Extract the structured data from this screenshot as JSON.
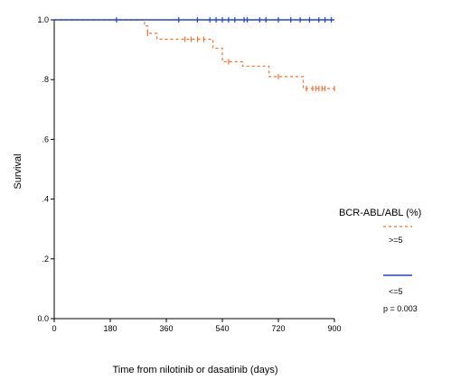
{
  "chart_data": {
    "type": "line",
    "title": "",
    "xlabel": "Time from nilotinib or dasatinib (days)",
    "ylabel": "Survival",
    "xlim": [
      0,
      900
    ],
    "ylim": [
      0,
      1.0
    ],
    "x_ticks": [
      0,
      180,
      360,
      540,
      720,
      900
    ],
    "x_tick_labels": [
      "0",
      "180",
      "360",
      "540",
      "720",
      "900"
    ],
    "y_ticks": [
      0,
      0.2,
      0.4,
      0.6,
      0.8,
      1.0
    ],
    "y_tick_labels": [
      "0.0",
      ".2",
      ".4",
      ".6",
      ".8",
      "1.0"
    ],
    "legend": {
      "title": "BCR-ABL/ABL (%)",
      "placement": "right"
    },
    "annotation": "p = 0.003",
    "series": [
      {
        "name": ">=5",
        "color": "#f07030",
        "style": "dashed",
        "steps": [
          [
            0,
            1.0
          ],
          [
            290,
            0.98
          ],
          [
            300,
            0.955
          ],
          [
            330,
            0.935
          ],
          [
            510,
            0.905
          ],
          [
            540,
            0.86
          ],
          [
            605,
            0.845
          ],
          [
            690,
            0.81
          ],
          [
            800,
            0.77
          ],
          [
            900,
            0.77
          ]
        ],
        "censored": [
          [
            300,
            0.955
          ],
          [
            420,
            0.935
          ],
          [
            440,
            0.935
          ],
          [
            460,
            0.935
          ],
          [
            480,
            0.935
          ],
          [
            560,
            0.86
          ],
          [
            720,
            0.81
          ],
          [
            810,
            0.77
          ],
          [
            830,
            0.77
          ],
          [
            840,
            0.77
          ],
          [
            850,
            0.77
          ],
          [
            860,
            0.77
          ],
          [
            870,
            0.77
          ],
          [
            900,
            0.77
          ]
        ]
      },
      {
        "name": "<=5",
        "color": "#2040e0",
        "style": "solid",
        "steps": [
          [
            0,
            1.0
          ],
          [
            900,
            1.0
          ]
        ],
        "censored": [
          [
            200,
            1.0
          ],
          [
            400,
            1.0
          ],
          [
            460,
            1.0
          ],
          [
            500,
            1.0
          ],
          [
            520,
            1.0
          ],
          [
            540,
            1.0
          ],
          [
            560,
            1.0
          ],
          [
            580,
            1.0
          ],
          [
            610,
            1.0
          ],
          [
            620,
            1.0
          ],
          [
            660,
            1.0
          ],
          [
            680,
            1.0
          ],
          [
            720,
            1.0
          ],
          [
            760,
            1.0
          ],
          [
            790,
            1.0
          ],
          [
            820,
            1.0
          ],
          [
            850,
            1.0
          ],
          [
            870,
            1.0
          ],
          [
            890,
            1.0
          ]
        ]
      }
    ]
  }
}
